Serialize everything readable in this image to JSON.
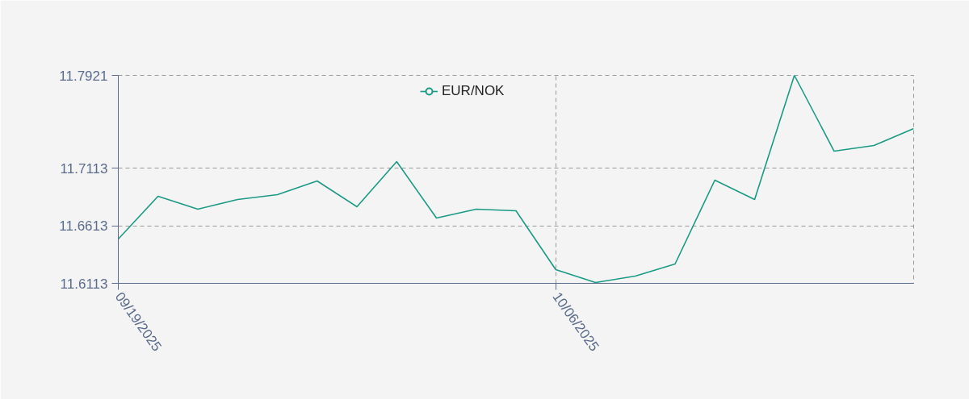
{
  "chart_data": {
    "type": "line",
    "categories": [
      "09/19/2025",
      null,
      null,
      null,
      null,
      null,
      null,
      null,
      null,
      null,
      null,
      "10/06/2025",
      null,
      null,
      null,
      null,
      null,
      null,
      null,
      null,
      null
    ],
    "series": [
      {
        "name": "EUR/NOK",
        "color": "#1a9a84",
        "values": [
          11.6498,
          11.687,
          11.6758,
          11.6842,
          11.6884,
          11.7003,
          11.6779,
          11.7171,
          11.6681,
          11.6758,
          11.6744,
          11.6232,
          11.612,
          11.6176,
          11.6281,
          11.701,
          11.6842,
          11.7921,
          11.7262,
          11.7311,
          11.7458
        ]
      }
    ],
    "ylim": [
      11.6113,
      11.7921
    ],
    "yticks": [
      11.6113,
      11.6613,
      11.7113,
      11.7921
    ],
    "grid": true,
    "legend": "top",
    "line_style": "solid"
  }
}
